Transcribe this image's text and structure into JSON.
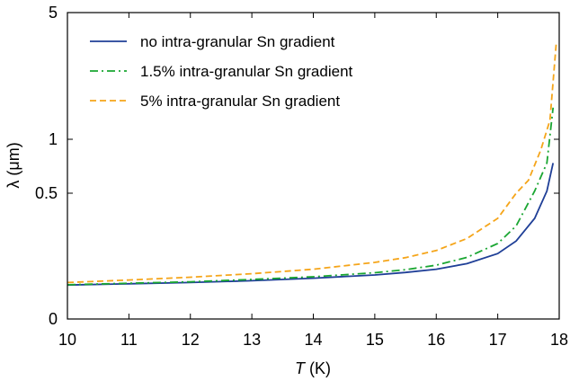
{
  "chart_data": {
    "type": "line",
    "title": "",
    "xlabel_italic": "T",
    "xlabel_unit": " (K)",
    "ylabel": "λ (μm)",
    "xlim": [
      10,
      18
    ],
    "x_ticks": [
      10,
      11,
      12,
      13,
      14,
      15,
      16,
      17,
      18
    ],
    "x_tick_labels": [
      "10",
      "11",
      "12",
      "13",
      "14",
      "15",
      "16",
      "17",
      "18"
    ],
    "y_ticks": [
      0,
      0.5,
      1,
      5
    ],
    "y_tick_labels": [
      "0",
      "0.5",
      "1",
      "5"
    ],
    "y_scale": "nonlinear (tick labels 0, 0.5, 1, 5)",
    "grid": false,
    "legend_position": "top-left",
    "series": [
      {
        "name": "no intra-granular Sn gradient",
        "color": "#1f3f97",
        "dash": "solid",
        "x": [
          10,
          11,
          12,
          13,
          14,
          15,
          15.5,
          16,
          16.5,
          17,
          17.3,
          17.6,
          17.8,
          17.9
        ],
        "y": [
          0.135,
          0.14,
          0.145,
          0.152,
          0.162,
          0.175,
          0.185,
          0.198,
          0.22,
          0.26,
          0.31,
          0.4,
          0.52,
          0.78
        ]
      },
      {
        "name": "1.5% intra-granular Sn gradient",
        "color": "#1aa632",
        "dash": "dashdot",
        "x": [
          10,
          11,
          12,
          13,
          14,
          15,
          15.5,
          16,
          16.5,
          17,
          17.3,
          17.6,
          17.8,
          17.9
        ],
        "y": [
          0.136,
          0.142,
          0.148,
          0.157,
          0.168,
          0.184,
          0.196,
          0.214,
          0.245,
          0.3,
          0.37,
          0.52,
          0.78,
          2.0
        ]
      },
      {
        "name": "5% intra-granular Sn gradient",
        "color": "#f5a51a",
        "dash": "dashed",
        "x": [
          10,
          11,
          12,
          13,
          14,
          15,
          15.5,
          16,
          16.5,
          17,
          17.3,
          17.5,
          17.7,
          17.85,
          17.95
        ],
        "y": [
          0.145,
          0.155,
          0.166,
          0.18,
          0.198,
          0.225,
          0.244,
          0.272,
          0.32,
          0.4,
          0.5,
          0.62,
          0.9,
          1.6,
          4.0
        ]
      }
    ]
  }
}
